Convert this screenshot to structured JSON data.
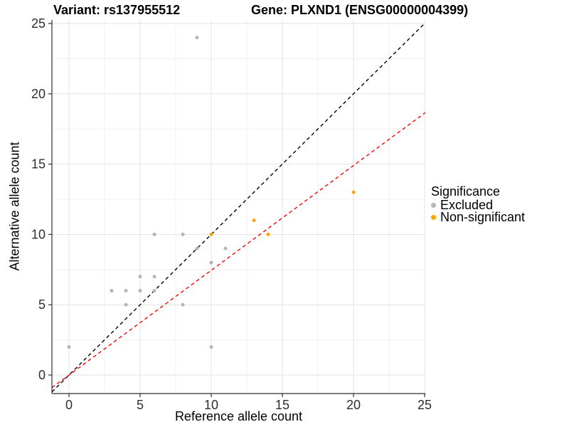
{
  "chart_data": {
    "type": "scatter",
    "titles": {
      "left": "Variant: rs137955512",
      "right": "Gene: PLXND1 (ENSG00000004399)"
    },
    "xlabel": "Reference allele count",
    "ylabel": "Alternative allele count",
    "xlim": [
      0,
      25
    ],
    "ylim": [
      0,
      25
    ],
    "x_ticks": [
      0,
      5,
      10,
      15,
      20,
      25
    ],
    "y_ticks": [
      0,
      5,
      10,
      15,
      20,
      25
    ],
    "minor_gridlines_every": 2.5,
    "grid": "major+minor",
    "background": "#ffffff",
    "series": [
      {
        "name": "Excluded",
        "color": "#b5b5b5",
        "points": [
          [
            0,
            2
          ],
          [
            3,
            6
          ],
          [
            4,
            5
          ],
          [
            4,
            6
          ],
          [
            5,
            6
          ],
          [
            5,
            7
          ],
          [
            6,
            6
          ],
          [
            6,
            7
          ],
          [
            6,
            10
          ],
          [
            8,
            5
          ],
          [
            8,
            10
          ],
          [
            9,
            9
          ],
          [
            9,
            24
          ],
          [
            10,
            2
          ],
          [
            10,
            8
          ],
          [
            11,
            9
          ]
        ]
      },
      {
        "name": "Non-significant",
        "color": "#ffa500",
        "points": [
          [
            10,
            10
          ],
          [
            13,
            11
          ],
          [
            14,
            10
          ],
          [
            20,
            13
          ]
        ]
      }
    ],
    "reference_lines": [
      {
        "name": "identity-line",
        "style": "dashed",
        "color": "#000000",
        "slope": 1,
        "intercept": 0
      },
      {
        "name": "expected-ratio-line",
        "style": "dashed",
        "color": "#ff0000",
        "slope": 0.745,
        "intercept": 0
      }
    ],
    "legend": {
      "title": "Significance",
      "position": "right",
      "items": [
        {
          "label": "Excluded",
          "color": "#b5b5b5"
        },
        {
          "label": "Non-significant",
          "color": "#ffa500"
        }
      ]
    }
  }
}
